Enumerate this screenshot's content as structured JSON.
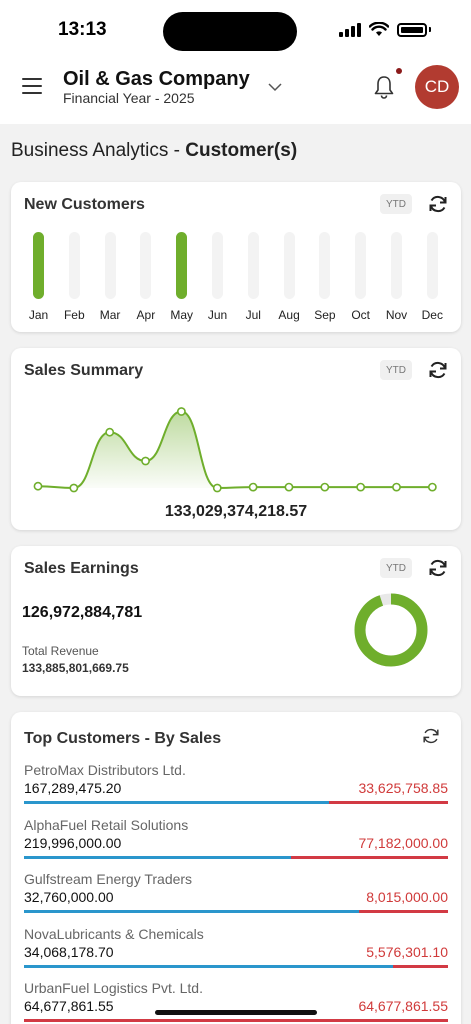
{
  "status_bar": {
    "time": "13:13"
  },
  "header": {
    "company": "Oil & Gas Company",
    "financial_year": "Financial Year - 2025",
    "avatar_initials": "CD"
  },
  "page": {
    "title_prefix": "Business Analytics - ",
    "title_bold": "Customer(s)"
  },
  "new_customers": {
    "title": "New Customers",
    "badge": "YTD",
    "months": [
      "Jan",
      "Feb",
      "Mar",
      "Apr",
      "May",
      "Jun",
      "Jul",
      "Aug",
      "Sep",
      "Oct",
      "Nov",
      "Dec"
    ],
    "values": [
      1,
      0,
      0,
      0,
      1,
      0,
      0,
      0,
      0,
      0,
      0,
      0
    ]
  },
  "sales_summary": {
    "title": "Sales Summary",
    "badge": "YTD",
    "total": "133,029,374,218.57",
    "values": [
      0.02,
      0.0,
      0.62,
      0.3,
      0.85,
      0.0,
      0.01,
      0.01,
      0.01,
      0.01,
      0.01,
      0.01
    ]
  },
  "sales_earnings": {
    "title": "Sales Earnings",
    "badge": "YTD",
    "earnings": "126,972,884,781",
    "revenue_label": "Total Revenue",
    "revenue_value": "133,885,801,669.75",
    "donut_fraction": 0.948
  },
  "top_customers": {
    "title": "Top Customers - By Sales",
    "rows": [
      {
        "name": "PetroMax Distributors Ltd.",
        "sales": "167,289,475.20",
        "due": "33,625,758.85",
        "paid_fraction": 0.72
      },
      {
        "name": "AlphaFuel Retail Solutions",
        "sales": "219,996,000.00",
        "due": "77,182,000.00",
        "paid_fraction": 0.63
      },
      {
        "name": "Gulfstream Energy Traders",
        "sales": "32,760,000.00",
        "due": "8,015,000.00",
        "paid_fraction": 0.79
      },
      {
        "name": "NovaLubricants & Chemicals",
        "sales": "34,068,178.70",
        "due": "5,576,301.10",
        "paid_fraction": 0.87
      },
      {
        "name": "UrbanFuel Logistics Pvt. Ltd.",
        "sales": "64,677,861.55",
        "due": "64,677,861.55",
        "paid_fraction": 0.0
      }
    ]
  },
  "colors": {
    "accent_green": "#6fae2c",
    "blue": "#2a96cc",
    "red": "#d23a44",
    "avatar": "#b23b30"
  }
}
